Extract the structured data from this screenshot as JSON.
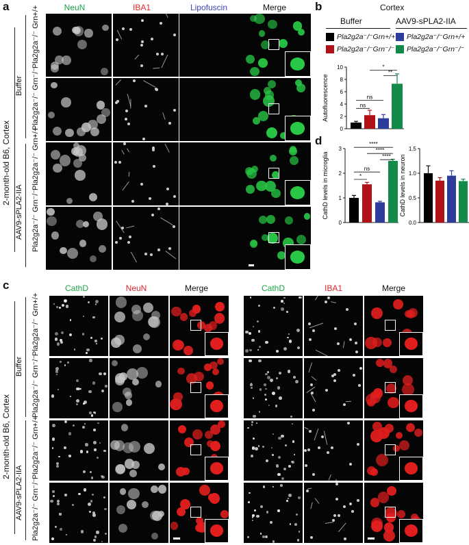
{
  "panel_a": {
    "letter": "a",
    "columns": [
      "NeuN",
      "IBA1",
      "Lipofuscin",
      "Merge"
    ],
    "side_label": "2-month-old  B6, Cortex",
    "groups": [
      "Buffer",
      "AAV9-sPLA2-IIA"
    ],
    "rows": [
      "Pla2g2a⁻/⁻ Grn+/+",
      "Pla2g2a⁻/⁻ Grn⁻/⁻",
      "Pla2g2a⁻/⁻ Grn+/+",
      "Pla2g2a⁻/⁻ Grn⁻/⁻"
    ]
  },
  "panel_b": {
    "letter": "b",
    "region": "Cortex",
    "groups": [
      "Buffer",
      "AAV9-sPLA2-IIA"
    ],
    "legend": [
      {
        "label": "Pla2g2a⁻/⁻Grn+/+",
        "color": "#000000"
      },
      {
        "label": "Pla2g2a⁻/⁻Grn+/+",
        "color": "#2e3d9c"
      },
      {
        "label": "Pla2g2a⁻/⁻Grn⁻/⁻",
        "color": "#b01218"
      },
      {
        "label": "Pla2g2a⁻/⁻Grn⁻/⁻",
        "color": "#138a4a"
      }
    ]
  },
  "panel_c": {
    "letter": "c",
    "columns_left": [
      "CathD",
      "NeuN",
      "Merge"
    ],
    "columns_right": [
      "CathD",
      "IBA1",
      "Merge"
    ],
    "side_label": "2-month-old  B6, Cortex",
    "groups": [
      "Buffer",
      "AAV9-sPLA2-IIA"
    ],
    "rows": [
      "Pla2g2a⁻/⁻ Grn+/+",
      "Pla2g2a⁻/⁻ Grn⁻/⁻",
      "Pla2g2a⁻/⁻ Grn+/+",
      "Pla2g2a⁻/⁻ Grn⁻/⁻"
    ]
  },
  "panel_d": {
    "letter": "d"
  },
  "chart_data": [
    {
      "type": "bar",
      "panel": "b",
      "categories": [
        "Buffer Grn+/+",
        "Buffer Grn-/-",
        "AAV9 Grn+/+",
        "AAV9 Grn-/-"
      ],
      "values": [
        1.0,
        2.2,
        1.7,
        7.3
      ],
      "errors": [
        0.2,
        0.8,
        0.6,
        1.6
      ],
      "colors": [
        "#000000",
        "#b01218",
        "#2e3d9c",
        "#138a4a"
      ],
      "ylabel": "Autofluorescence",
      "ylim": [
        0,
        10
      ],
      "yticks": [
        0,
        2,
        4,
        6,
        8,
        10
      ],
      "annotations": [
        "ns",
        "ns",
        "*",
        "**"
      ]
    },
    {
      "type": "bar",
      "panel": "d-left",
      "categories": [
        "Buffer Grn+/+",
        "Buffer Grn-/-",
        "AAV9 Grn+/+",
        "AAV9 Grn-/-"
      ],
      "values": [
        1.0,
        1.55,
        0.82,
        2.5
      ],
      "errors": [
        0.1,
        0.08,
        0.04,
        0.07
      ],
      "colors": [
        "#000000",
        "#b01218",
        "#2e3d9c",
        "#138a4a"
      ],
      "ylabel": "CathD levels in microglia",
      "ylim": [
        0,
        3
      ],
      "yticks": [
        0,
        1,
        2,
        3
      ],
      "annotations": [
        "*",
        "ns",
        "****",
        "****",
        "****"
      ]
    },
    {
      "type": "bar",
      "panel": "d-right",
      "categories": [
        "Buffer Grn+/+",
        "Buffer Grn-/-",
        "AAV9 Grn+/+",
        "AAV9 Grn-/-"
      ],
      "values": [
        1.0,
        0.85,
        0.95,
        0.84
      ],
      "errors": [
        0.15,
        0.06,
        0.1,
        0.04
      ],
      "colors": [
        "#000000",
        "#b01218",
        "#2e3d9c",
        "#138a4a"
      ],
      "ylabel": "CathD levels in neuron",
      "ylim": [
        0,
        1.5
      ],
      "yticks": [
        0.0,
        0.5,
        1.0,
        1.5
      ]
    }
  ]
}
